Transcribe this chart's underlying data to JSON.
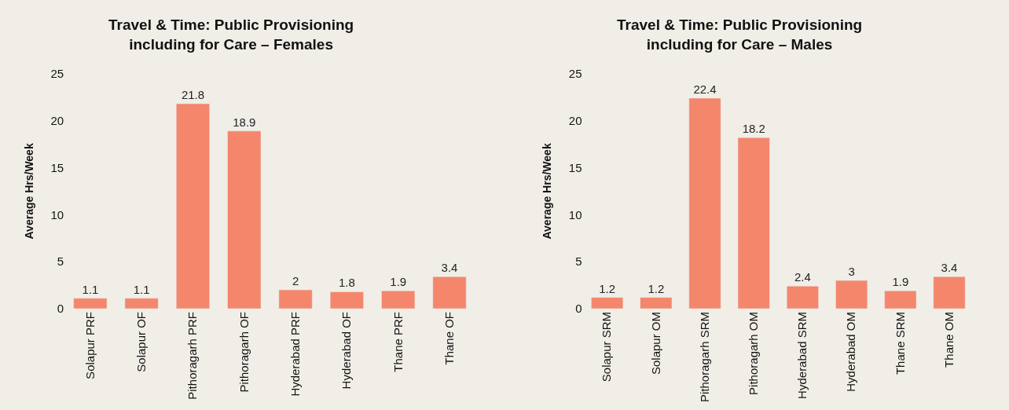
{
  "chart_data": [
    {
      "type": "bar",
      "title": "Travel & Time: Public Provisioning including for Care – Females",
      "ylabel": "Average Hrs/Week",
      "categories": [
        "Solapur PRF",
        "Solapur OF",
        "Pithoragarh PRF",
        "Pithoragarh OF",
        "Hyderabad PRF",
        "Hyderabad OF",
        "Thane PRF",
        "Thane OF"
      ],
      "values": [
        1.1,
        1.1,
        21.8,
        18.9,
        2,
        1.8,
        1.9,
        3.4
      ],
      "color": "#f4876b",
      "ylim": [
        0,
        25
      ],
      "yticks": [
        0,
        5,
        10,
        15,
        20,
        25
      ],
      "grid": false,
      "data_labels": true
    },
    {
      "type": "bar",
      "title": "Travel & Time: Public Provisioning including for Care – Males",
      "ylabel": "Average Hrs/Week",
      "categories": [
        "Solapur SRM",
        "Solapur OM",
        "Pithoragarh SRM",
        "Pithoragarh OM",
        "Hyderabad SRM",
        "Hyderabad OM",
        "Thane SRM",
        "Thane OM"
      ],
      "values": [
        1.2,
        1.2,
        22.4,
        18.2,
        2.4,
        3,
        1.9,
        3.4
      ],
      "color": "#f4876b",
      "ylim": [
        0,
        25
      ],
      "yticks": [
        0,
        5,
        10,
        15,
        20,
        25
      ],
      "grid": false,
      "data_labels": true
    }
  ]
}
